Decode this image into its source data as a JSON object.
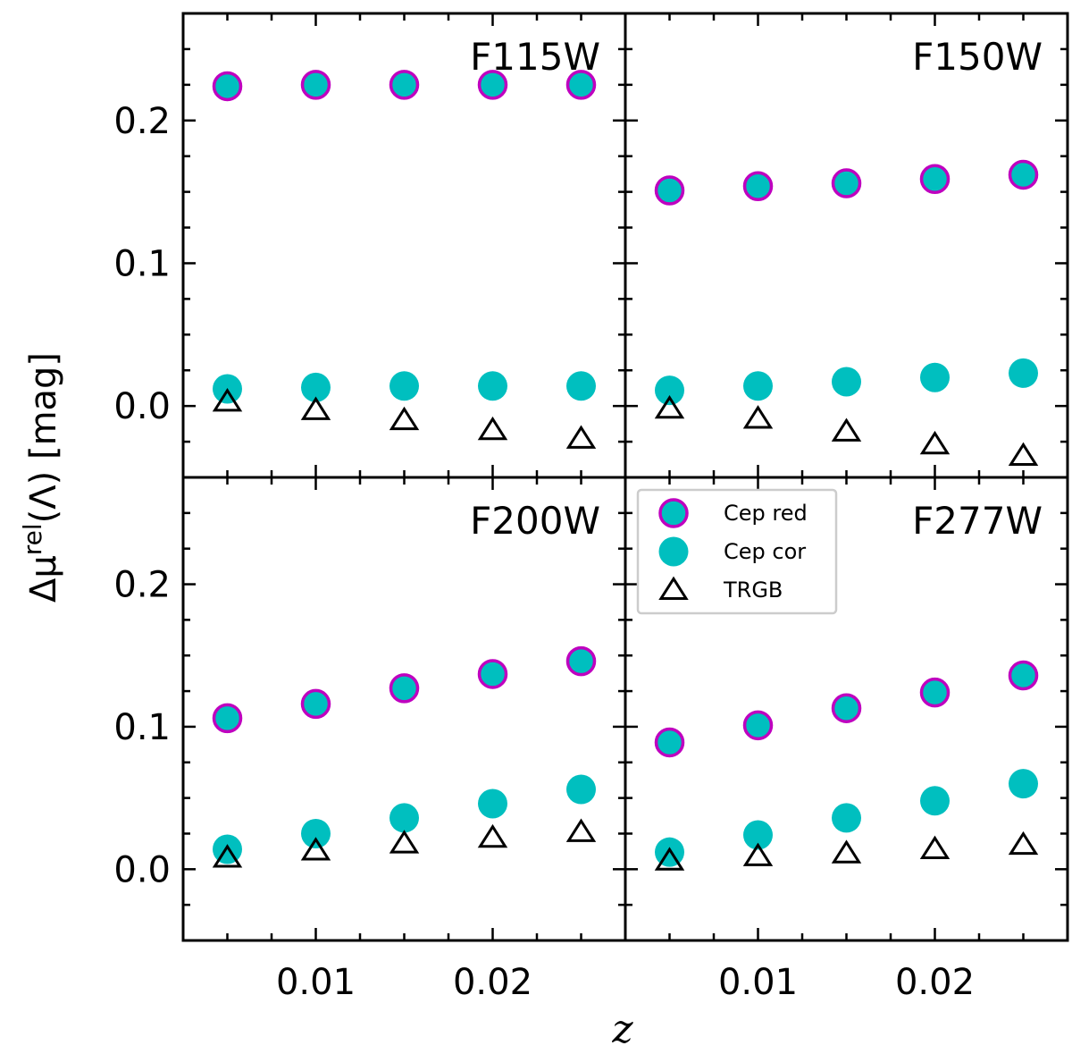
{
  "chart_data": {
    "type": "scatter",
    "xlabel": "z",
    "ylabel": {
      "main": "Δμ",
      "sup": "rel",
      "tail": "(Λ) [mag]"
    },
    "xlim": [
      0.0025,
      0.0275
    ],
    "ylim": [
      -0.05,
      0.275
    ],
    "x_ticks": [
      0.01,
      0.02
    ],
    "x_tick_labels": [
      "0.01",
      "0.02"
    ],
    "y_ticks": [
      0.0,
      0.1,
      0.2
    ],
    "y_tick_labels": [
      "0.0",
      "0.1",
      "0.2"
    ],
    "legend": {
      "location": "upper-left of bottom-right panel",
      "entries": [
        {
          "label": "Cep red",
          "marker": "circle-outlined"
        },
        {
          "label": "Cep cor",
          "marker": "circle-filled"
        },
        {
          "label": "TRGB",
          "marker": "triangle-open"
        }
      ]
    },
    "colors": {
      "cep_fill": "#00bfbf",
      "cep_red_edge": "#bf00bf",
      "trgb_edge": "#000000"
    },
    "x": [
      0.005,
      0.01,
      0.015,
      0.02,
      0.025
    ],
    "panels": [
      {
        "label": "F115W",
        "series": [
          {
            "name": "Cep red",
            "values": [
              0.224,
              0.225,
              0.225,
              0.225,
              0.225
            ]
          },
          {
            "name": "Cep cor",
            "values": [
              0.012,
              0.013,
              0.014,
              0.014,
              0.014
            ]
          },
          {
            "name": "TRGB",
            "values": [
              0.003,
              -0.003,
              -0.01,
              -0.017,
              -0.023
            ]
          }
        ]
      },
      {
        "label": "F150W",
        "series": [
          {
            "name": "Cep red",
            "values": [
              0.151,
              0.154,
              0.156,
              0.159,
              0.162
            ]
          },
          {
            "name": "Cep cor",
            "values": [
              0.011,
              0.014,
              0.017,
              0.02,
              0.023
            ]
          },
          {
            "name": "TRGB",
            "values": [
              -0.002,
              -0.009,
              -0.018,
              -0.027,
              -0.035
            ]
          }
        ]
      },
      {
        "label": "F200W",
        "series": [
          {
            "name": "Cep red",
            "values": [
              0.106,
              0.116,
              0.127,
              0.137,
              0.146
            ]
          },
          {
            "name": "Cep cor",
            "values": [
              0.014,
              0.025,
              0.036,
              0.046,
              0.056
            ]
          },
          {
            "name": "TRGB",
            "values": [
              0.008,
              0.013,
              0.018,
              0.022,
              0.026
            ]
          }
        ]
      },
      {
        "label": "F277W",
        "series": [
          {
            "name": "Cep red",
            "values": [
              0.089,
              0.101,
              0.113,
              0.124,
              0.136
            ]
          },
          {
            "name": "Cep cor",
            "values": [
              0.012,
              0.024,
              0.036,
              0.048,
              0.06
            ]
          },
          {
            "name": "TRGB",
            "values": [
              0.006,
              0.009,
              0.011,
              0.014,
              0.017
            ]
          }
        ]
      }
    ]
  }
}
